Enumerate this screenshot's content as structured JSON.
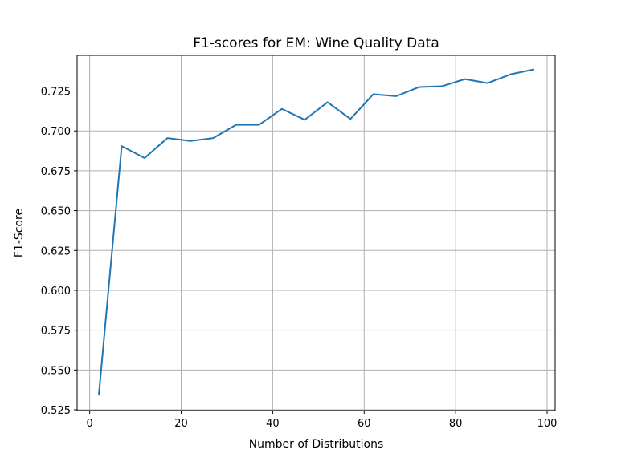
{
  "chart_data": {
    "type": "line",
    "title": "F1-scores for EM: Wine Quality Data",
    "xlabel": "Number of Distributions",
    "ylabel": "F1-Score",
    "xlim": [
      -2.75,
      101.75
    ],
    "ylim": [
      0.5245,
      0.7474
    ],
    "xticks": [
      0,
      20,
      40,
      60,
      80,
      100
    ],
    "yticks": [
      0.525,
      0.55,
      0.575,
      0.6,
      0.625,
      0.65,
      0.675,
      0.7,
      0.725
    ],
    "xtick_labels": [
      "0",
      "20",
      "40",
      "60",
      "80",
      "100"
    ],
    "ytick_labels": [
      "0.525",
      "0.550",
      "0.575",
      "0.600",
      "0.625",
      "0.650",
      "0.675",
      "0.700",
      "0.725"
    ],
    "grid": true,
    "series": [
      {
        "color": "#1f77b4",
        "x": [
          2,
          7,
          12,
          17,
          22,
          27,
          32,
          37,
          42,
          47,
          52,
          57,
          62,
          67,
          72,
          77,
          82,
          87,
          92,
          97
        ],
        "y": [
          0.5345,
          0.6905,
          0.683,
          0.6955,
          0.6937,
          0.6955,
          0.7038,
          0.7038,
          0.7138,
          0.707,
          0.718,
          0.7075,
          0.723,
          0.7218,
          0.7275,
          0.728,
          0.7325,
          0.73,
          0.7355,
          0.7385
        ]
      }
    ]
  }
}
